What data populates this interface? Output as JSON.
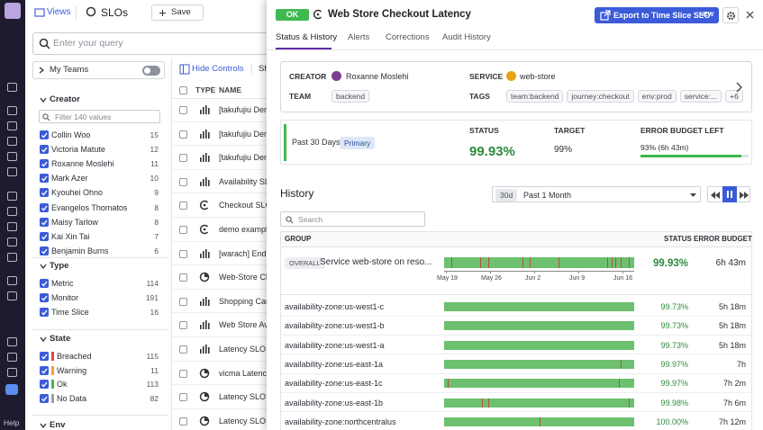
{
  "nav": {
    "help": "Help"
  },
  "header": {
    "views": "Views",
    "title": "SLOs",
    "save": "Save"
  },
  "search": {
    "placeholder": "Enter your query"
  },
  "facets": {
    "my_teams": "My Teams",
    "creator": {
      "title": "Creator",
      "filter": "Filter 140 values",
      "items": [
        {
          "name": "Collin Woo",
          "count": "15"
        },
        {
          "name": "Victoria Matute",
          "count": "12"
        },
        {
          "name": "Roxanne Moslehi",
          "count": "11"
        },
        {
          "name": "Mark Azer",
          "count": "10"
        },
        {
          "name": "Kyouhei Ohno",
          "count": "9"
        },
        {
          "name": "Evangelos Thomatos",
          "count": "8"
        },
        {
          "name": "Maisy Tarlow",
          "count": "8"
        },
        {
          "name": "Kai Xin Tai",
          "count": "7"
        },
        {
          "name": "Benjamin Burns",
          "count": "6"
        }
      ]
    },
    "type": {
      "title": "Type",
      "items": [
        {
          "name": "Metric",
          "count": "114"
        },
        {
          "name": "Monitor",
          "count": "191"
        },
        {
          "name": "Time Slice",
          "count": "16"
        }
      ]
    },
    "state": {
      "title": "State",
      "items": [
        {
          "name": "Breached",
          "count": "115",
          "color": "#e0474c"
        },
        {
          "name": "Warning",
          "count": "11",
          "color": "#f2a33a"
        },
        {
          "name": "Ok",
          "count": "113",
          "color": "#3fb950"
        },
        {
          "name": "No Data",
          "count": "82",
          "color": "#9aa0aa"
        }
      ]
    },
    "env": {
      "title": "Env"
    }
  },
  "list": {
    "hide_controls": "Hide Controls",
    "sh": "Sh",
    "columns": {
      "type": "TYPE",
      "name": "NAME"
    },
    "rows": [
      {
        "name": "[takufujiu Dem",
        "kind": "metric"
      },
      {
        "name": "[takufujiu Den",
        "kind": "metric"
      },
      {
        "name": "[takufujiu Den",
        "kind": "metric"
      },
      {
        "name": "Availability SLO",
        "kind": "metric"
      },
      {
        "name": "Checkout SLO",
        "kind": "monitor"
      },
      {
        "name": "demo exampl",
        "kind": "monitor"
      },
      {
        "name": "[warach] End U",
        "kind": "metric"
      },
      {
        "name": "Web-Store Che",
        "kind": "timeslice"
      },
      {
        "name": "Shopping Cart",
        "kind": "metric"
      },
      {
        "name": "Web Store Ava",
        "kind": "metric"
      },
      {
        "name": "Latency SLO fo",
        "kind": "metric"
      },
      {
        "name": "vicma Latency",
        "kind": "timeslice"
      },
      {
        "name": "Latency SLO fo",
        "kind": "timeslice"
      },
      {
        "name": "Latency SLO fo",
        "kind": "timeslice"
      }
    ]
  },
  "panel": {
    "badge": "OK",
    "title": "Web Store Checkout Latency",
    "export": "Export to Time Slice SLO",
    "new": "NEW",
    "tabs": [
      "Status & History",
      "Alerts",
      "Corrections",
      "Audit History"
    ],
    "info": {
      "creator_label": "CREATOR",
      "creator": "Roxanne Moslehi",
      "team_label": "TEAM",
      "team": "backend",
      "service_label": "SERVICE",
      "service": "web-store",
      "tags_label": "TAGS",
      "tags": [
        "team:backend",
        "journey:checkout",
        "env:prod",
        "service:..."
      ],
      "more_tags": "+6"
    },
    "summary": {
      "period": "Past 30 Days",
      "primary": "Primary",
      "status_label": "STATUS",
      "status": "99.93%",
      "target_label": "TARGET",
      "target": "99%",
      "budget_label": "ERROR BUDGET LEFT",
      "budget": {
        "value": 93,
        "label": "93% (6h 43m)"
      }
    },
    "history": {
      "title": "History",
      "range_short": "30d",
      "range": "Past 1 Month",
      "search": "Search",
      "columns": {
        "group": "GROUP",
        "status": "STATUS",
        "budget": "ERROR BUDGET"
      },
      "overall": {
        "badge": "OVERALL",
        "name": "Service web-store on reso...",
        "status": "99.93%",
        "budget": "6h 43m",
        "dates": [
          "May 19",
          "May 26",
          "Jun 2",
          "Jun 9",
          "Jun 16"
        ]
      },
      "rows": [
        {
          "group": "availability-zone:us-west1-c",
          "status": "99.73%",
          "budget": "5h 18m"
        },
        {
          "group": "availability-zone:us-west1-b",
          "status": "99.73%",
          "budget": "5h 18m"
        },
        {
          "group": "availability-zone:us-west1-a",
          "status": "99.73%",
          "budget": "5h 18m"
        },
        {
          "group": "availability-zone:us-east-1a",
          "status": "99.97%",
          "budget": "7h"
        },
        {
          "group": "availability-zone:us-east-1c",
          "status": "99.97%",
          "budget": "7h 2m"
        },
        {
          "group": "availability-zone:us-east-1b",
          "status": "99.98%",
          "budget": "7h 6m"
        },
        {
          "group": "availability-zone:northcentralus",
          "status": "100.00%",
          "budget": "7h 12m"
        }
      ]
    }
  }
}
